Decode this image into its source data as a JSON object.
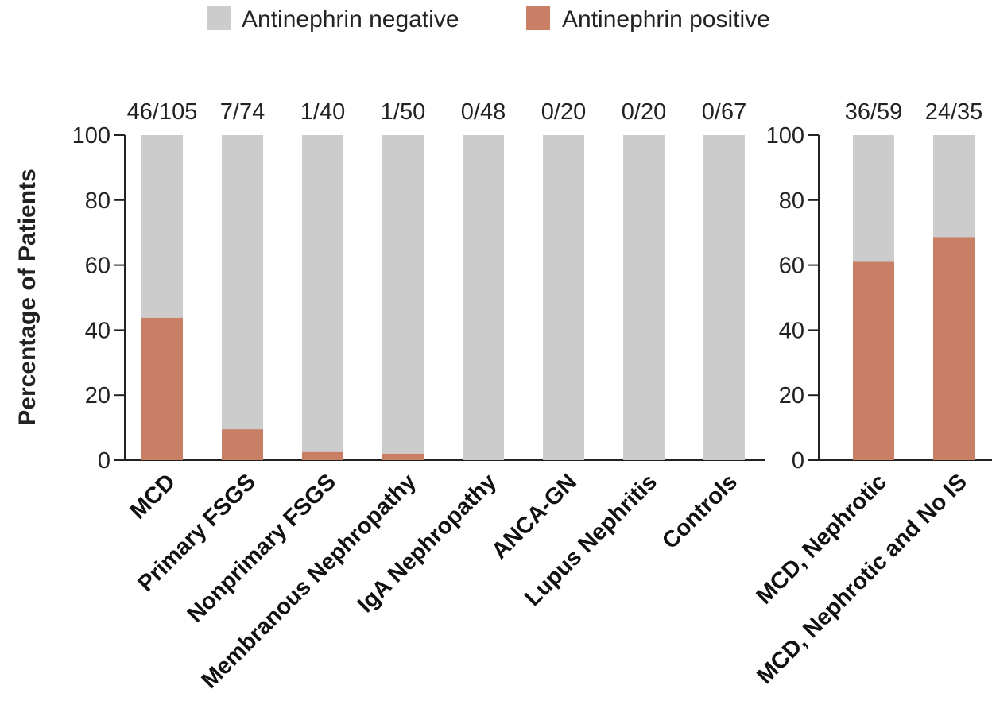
{
  "legend": {
    "negative_label": "Antinephrin negative",
    "positive_label": "Antinephrin positive"
  },
  "colors": {
    "negative": "#cccccc",
    "positive": "#c97f65",
    "axis": "#222222"
  },
  "chart_data": [
    {
      "type": "bar",
      "stacked": true,
      "ylabel": "Percentage of Patients",
      "ylim": [
        0,
        100
      ],
      "yticks": [
        0,
        20,
        40,
        60,
        80,
        100
      ],
      "categories": [
        "MCD",
        "Primary FSGS",
        "Nonprimary FSGS",
        "Membranous Nephropathy",
        "IgA Nephropathy",
        "ANCA-GN",
        "Lupus Nephritis",
        "Controls"
      ],
      "count_labels": [
        "46/105",
        "7/74",
        "1/40",
        "1/50",
        "0/48",
        "0/20",
        "0/20",
        "0/67"
      ],
      "series": [
        {
          "name": "Antinephrin positive",
          "values": [
            43.8,
            9.5,
            2.5,
            2.0,
            0,
            0,
            0,
            0
          ]
        },
        {
          "name": "Antinephrin negative",
          "values": [
            56.2,
            90.5,
            97.5,
            98.0,
            100,
            100,
            100,
            100
          ]
        }
      ]
    },
    {
      "type": "bar",
      "stacked": true,
      "ylim": [
        0,
        100
      ],
      "yticks": [
        0,
        20,
        40,
        60,
        80,
        100
      ],
      "categories": [
        "MCD, Nephrotic",
        "MCD, Nephrotic and No IS"
      ],
      "count_labels": [
        "36/59",
        "24/35"
      ],
      "series": [
        {
          "name": "Antinephrin positive",
          "values": [
            61.0,
            68.6
          ]
        },
        {
          "name": "Antinephrin negative",
          "values": [
            39.0,
            31.4
          ]
        }
      ]
    }
  ]
}
